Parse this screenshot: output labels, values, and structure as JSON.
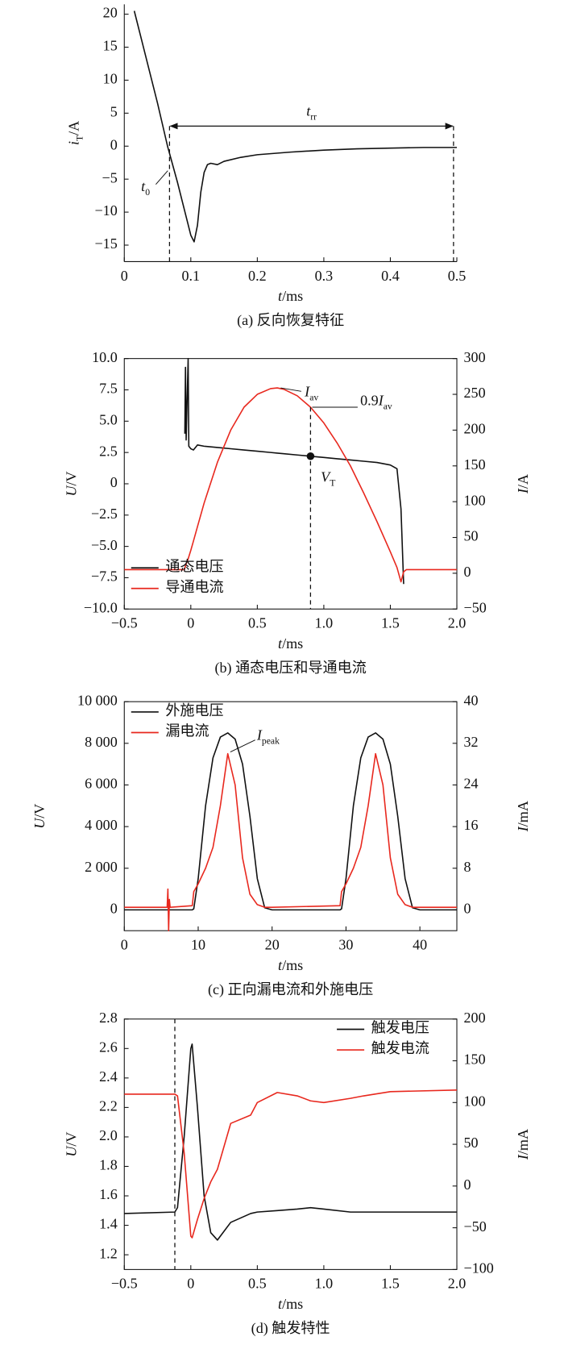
{
  "chart_data": [
    {
      "type": "line",
      "caption": "(a)  反向恢复特征",
      "xlabel": [
        "t",
        "/ms"
      ],
      "ylabel": [
        "i",
        "T",
        "/A"
      ],
      "xlim": [
        0,
        0.5
      ],
      "ylim": [
        -17.5,
        21.5
      ],
      "xticks": [
        0,
        0.1,
        0.2,
        0.3,
        0.4,
        0.5
      ],
      "yticks": [
        {
          "value": -15,
          "label": "−15"
        },
        {
          "value": -10,
          "label": "−10"
        },
        {
          "value": -5,
          "label": "−5"
        },
        0,
        5,
        10,
        15,
        20
      ],
      "x": [
        0.015,
        0.03,
        0.05,
        0.065,
        0.08,
        0.095,
        0.1,
        0.105,
        0.11,
        0.115,
        0.12,
        0.125,
        0.13,
        0.14,
        0.15,
        0.175,
        0.2,
        0.25,
        0.3,
        0.35,
        0.4,
        0.45,
        0.5
      ],
      "series": [
        {
          "color": "#111111",
          "values": [
            20.5,
            14.5,
            6.5,
            0,
            -5.5,
            -11.5,
            -13.5,
            -14.5,
            -12,
            -7,
            -4,
            -2.8,
            -2.6,
            -2.8,
            -2.3,
            -1.7,
            -1.3,
            -0.9,
            -0.6,
            -0.4,
            -0.3,
            -0.2,
            -0.2
          ]
        }
      ],
      "trr_label": [
        "t",
        "rr"
      ],
      "trr_span": [
        0.068,
        0.495
      ],
      "t0_label": [
        "t",
        "0"
      ]
    },
    {
      "type": "line",
      "caption": "(b)  通态电压和导通电流",
      "xlabel": [
        "t",
        "/ms"
      ],
      "ylabel": [
        "U",
        "/V"
      ],
      "y2label": [
        "I",
        "/A"
      ],
      "xlim": [
        -0.5,
        2
      ],
      "ylim": [
        -10,
        10
      ],
      "y2lim": [
        -50,
        300
      ],
      "xticks": [
        {
          "value": -0.5,
          "label": "−0.5"
        },
        0,
        0.5,
        {
          "value": 1,
          "label": "1.0"
        },
        1.5,
        {
          "value": 2,
          "label": "2.0"
        }
      ],
      "yticks": [
        {
          "value": 10,
          "label": "10.0"
        },
        7.5,
        {
          "value": 5,
          "label": "5.0"
        },
        0,
        2.5,
        {
          "value": -2.5,
          "label": "−2.5"
        },
        {
          "value": -5,
          "label": "−5.0"
        },
        {
          "value": -7.5,
          "label": "−7.5"
        },
        {
          "value": -10,
          "label": "−10.0"
        }
      ],
      "y2ticks": [
        {
          "value": -50,
          "label": "−50"
        },
        0,
        50,
        100,
        150,
        200,
        250,
        300
      ],
      "x": [
        -0.5,
        -0.05,
        -0.045,
        -0.04,
        -0.035,
        -0.02,
        -0.015,
        0,
        0.02,
        0.05,
        0.1,
        0.2,
        0.3,
        0.4,
        0.5,
        0.6,
        0.65,
        0.7,
        0.8,
        0.9,
        1.0,
        1.1,
        1.2,
        1.3,
        1.4,
        1.5,
        1.55,
        1.58,
        1.6,
        1.62,
        2.0
      ],
      "series": [
        {
          "name": "通态电压",
          "color": "#111111",
          "values": [
            null,
            null,
            4.0,
            9.3,
            3.5,
            10,
            3.0,
            2.8,
            2.7,
            3.1,
            3.0,
            2.9,
            2.8,
            2.7,
            2.6,
            2.5,
            2.45,
            2.4,
            2.3,
            2.2,
            2.1,
            2.0,
            1.9,
            1.8,
            1.7,
            1.5,
            1.2,
            -2,
            -8,
            null,
            null
          ]
        },
        {
          "name": "导通电流",
          "color": "#e8281e",
          "axis": "y2",
          "values": [
            5,
            5,
            7,
            10,
            13,
            20,
            23,
            32,
            45,
            65,
            98,
            155,
            200,
            232,
            250,
            258,
            259,
            257,
            248,
            232,
            210,
            182,
            150,
            112,
            72,
            30,
            8,
            -12,
            2,
            5,
            5
          ]
        }
      ],
      "legend": "lower left",
      "iav_label": [
        "I",
        "av"
      ],
      "iav09_label": [
        "0.9",
        "I",
        "av"
      ],
      "vt_label": [
        "V",
        "T"
      ],
      "marker_x": 0.9
    },
    {
      "type": "line",
      "caption": "(c)  正向漏电流和外施电压",
      "xlabel": [
        "t",
        "/ms"
      ],
      "ylabel": [
        "U",
        "/V"
      ],
      "y2label": [
        "I",
        "/mA"
      ],
      "xlim": [
        0,
        45
      ],
      "ylim": [
        -1000,
        10000
      ],
      "y2lim": [
        -4,
        40
      ],
      "xticks": [
        0,
        10,
        20,
        30,
        40
      ],
      "yticks": [
        0,
        {
          "value": 2000,
          "label": "2 000"
        },
        {
          "value": 4000,
          "label": "4 000"
        },
        {
          "value": 6000,
          "label": "6 000"
        },
        {
          "value": 8000,
          "label": "8 000"
        },
        {
          "value": 10000,
          "label": "10 000"
        }
      ],
      "y2ticks": [
        0,
        8,
        16,
        24,
        32,
        40
      ],
      "x": [
        0,
        5.8,
        5.9,
        6.0,
        6.1,
        6.2,
        9.2,
        9.4,
        10,
        11,
        12,
        13,
        14,
        15,
        16,
        17,
        18,
        19,
        20,
        29.2,
        29.4,
        30,
        31,
        32,
        33,
        34,
        35,
        36,
        37,
        38,
        39,
        40,
        45
      ],
      "series": [
        {
          "name": "外施电压",
          "color": "#111111",
          "values": [
            0,
            0,
            0,
            0,
            0,
            0,
            0,
            50,
            1500,
            5000,
            7300,
            8300,
            8500,
            8200,
            7000,
            4500,
            1500,
            100,
            0,
            0,
            50,
            1500,
            5000,
            7300,
            8300,
            8500,
            8200,
            7000,
            4500,
            1500,
            100,
            0,
            0
          ]
        },
        {
          "name": "漏电流",
          "color": "#e8281e",
          "axis": "y2",
          "values": [
            0.5,
            0.5,
            4,
            -4,
            2,
            0.5,
            0.8,
            3.5,
            5,
            8,
            12,
            20,
            30,
            24,
            10,
            3,
            1,
            0.5,
            0.5,
            0.8,
            3.5,
            5,
            8,
            12,
            20,
            30,
            24,
            10,
            3,
            1,
            0.5,
            0.5,
            0.5
          ]
        }
      ],
      "legend": "upper left",
      "peak_label": [
        "I",
        "peak"
      ]
    },
    {
      "type": "line",
      "caption": "(d)  触发特性",
      "xlabel": [
        "t",
        "/ms"
      ],
      "ylabel": [
        "U",
        "/V"
      ],
      "y2label": [
        "I",
        "/mA"
      ],
      "xlim": [
        -0.5,
        2
      ],
      "ylim": [
        1.1,
        2.8
      ],
      "y2lim": [
        -100,
        200
      ],
      "xticks": [
        {
          "value": -0.5,
          "label": "−0.5"
        },
        0,
        0.5,
        {
          "value": 1,
          "label": "1.0"
        },
        1.5,
        {
          "value": 2,
          "label": "2.0"
        }
      ],
      "yticks": [
        1.2,
        1.4,
        1.6,
        1.8,
        {
          "value": 2,
          "label": "2.0"
        },
        2.2,
        2.4,
        2.6,
        2.8
      ],
      "y2ticks": [
        {
          "value": -100,
          "label": "−100"
        },
        {
          "value": -50,
          "label": "−50"
        },
        0,
        50,
        100,
        150,
        200
      ],
      "x": [
        -0.5,
        -0.12,
        -0.1,
        -0.05,
        0,
        0.01,
        0.05,
        0.1,
        0.15,
        0.2,
        0.3,
        0.45,
        0.5,
        0.65,
        0.8,
        0.9,
        1.0,
        1.2,
        1.3,
        1.5,
        2.0
      ],
      "series": [
        {
          "name": "触发电压",
          "color": "#111111",
          "values": [
            1.48,
            1.49,
            1.52,
            2.0,
            2.6,
            2.63,
            2.2,
            1.6,
            1.35,
            1.3,
            1.42,
            1.48,
            1.49,
            1.5,
            1.51,
            1.52,
            1.51,
            1.49,
            1.49,
            1.49,
            1.49
          ]
        },
        {
          "name": "触发电流",
          "color": "#e8281e",
          "axis": "y2",
          "values": [
            110,
            110,
            108,
            40,
            -60,
            -62,
            -40,
            -15,
            5,
            20,
            75,
            85,
            100,
            112,
            108,
            102,
            100,
            105,
            108,
            113,
            115
          ]
        }
      ],
      "legend": "upper right",
      "marker_x": -0.12
    }
  ]
}
